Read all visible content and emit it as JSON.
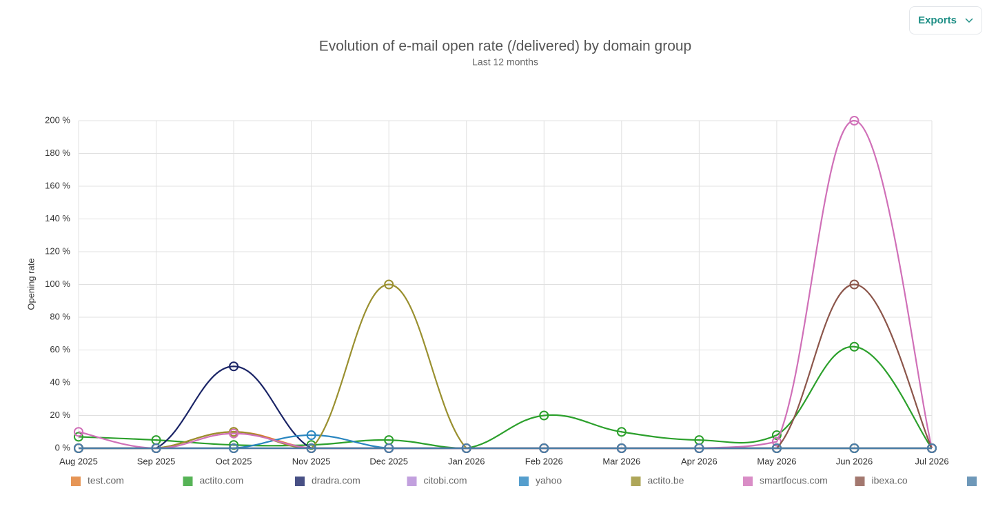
{
  "export_button": "Exports",
  "chart_data": {
    "type": "line",
    "title": "Evolution of e-mail open rate (/delivered) by domain group",
    "subtitle": "Last 12 months",
    "y_label": "Opening rate",
    "categories": [
      "Aug 2025",
      "Sep 2025",
      "Oct 2025",
      "Nov 2025",
      "Dec 2025",
      "Jan 2026",
      "Feb 2026",
      "Mar 2026",
      "Apr 2026",
      "May 2026",
      "Jun 2026",
      "Jul 2026"
    ],
    "ylim": [
      0,
      200
    ],
    "yticks": [
      {
        "value": 0,
        "label": "0 %"
      },
      {
        "value": 20,
        "label": "20 %"
      },
      {
        "value": 40,
        "label": "40 %"
      },
      {
        "value": 60,
        "label": "60 %"
      },
      {
        "value": 80,
        "label": "80 %"
      },
      {
        "value": 100,
        "label": "100 %"
      },
      {
        "value": 120,
        "label": "120 %"
      },
      {
        "value": 140,
        "label": "140 %"
      },
      {
        "value": 160,
        "label": "160 %"
      },
      {
        "value": 180,
        "label": "180 %"
      },
      {
        "value": 200,
        "label": "200 %"
      }
    ],
    "grid": true,
    "legend": "bottom",
    "series": [
      {
        "name": "test.com",
        "color": "#e07b2a",
        "values": [
          0,
          0,
          10,
          0,
          0,
          0,
          0,
          0,
          0,
          0,
          0,
          0
        ]
      },
      {
        "name": "actito.com",
        "color": "#2ca02c",
        "values": [
          7,
          5,
          2,
          2,
          5,
          0,
          20,
          10,
          5,
          8,
          62,
          0
        ]
      },
      {
        "name": "dradra.com",
        "color": "#1a2466",
        "values": [
          0,
          0,
          50,
          0,
          0,
          0,
          0,
          0,
          0,
          0,
          0,
          0
        ]
      },
      {
        "name": "citobi.com",
        "color": "#b388d6",
        "values": [
          0,
          0,
          0,
          0,
          0,
          0,
          0,
          0,
          0,
          0,
          0,
          0
        ]
      },
      {
        "name": "yahoo",
        "color": "#2a86c0",
        "values": [
          0,
          0,
          0,
          8,
          0,
          0,
          0,
          0,
          0,
          0,
          0,
          0
        ]
      },
      {
        "name": "actito.be",
        "color": "#9a9030",
        "values": [
          0,
          0,
          10,
          0,
          100,
          0,
          0,
          0,
          0,
          0,
          0,
          0
        ]
      },
      {
        "name": "smartfocus.com",
        "color": "#d070b8",
        "values": [
          10,
          0,
          9,
          0,
          0,
          0,
          0,
          0,
          0,
          4,
          200,
          0
        ]
      },
      {
        "name": "ibexa.co",
        "color": "#8c564b",
        "values": [
          0,
          0,
          0,
          0,
          0,
          0,
          0,
          0,
          0,
          0,
          100,
          0
        ]
      },
      {
        "color": "#4a7ea8",
        "values": [
          0,
          0,
          0,
          0,
          0,
          0,
          0,
          0,
          0,
          0,
          0,
          0
        ]
      }
    ]
  }
}
